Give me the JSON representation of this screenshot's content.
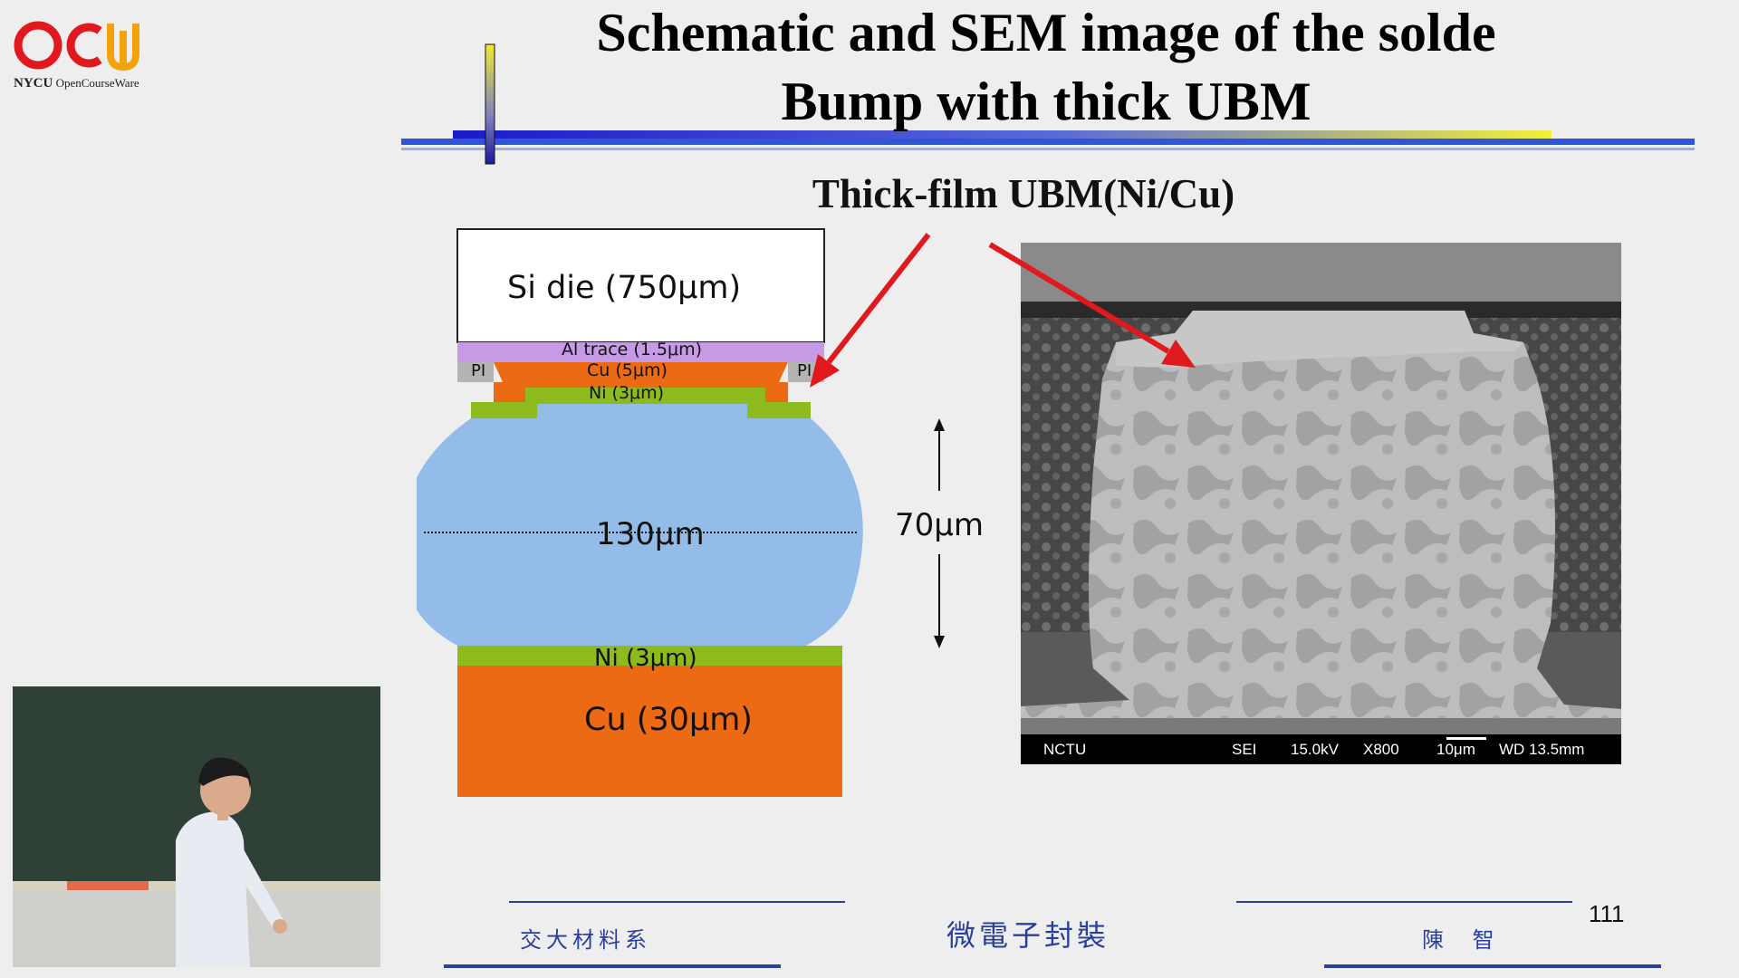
{
  "logo": {
    "brand": "NYCU",
    "sub": "OpenCourseWare"
  },
  "slide": {
    "title_line1": "Schematic and SEM image of the solde",
    "title_line2": "Bump with thick UBM",
    "subtitle": "Thick-film UBM(Ni/Cu)"
  },
  "schematic": {
    "si_die": "Si die (750μm)",
    "al_trace": "Al trace (1.5μm)",
    "pi_left": "PI",
    "pi_right": "PI",
    "cu_top": "Cu (5μm)",
    "ni_top": "Ni (3μm)",
    "width": "130μm",
    "height": "70μm",
    "ni_bottom": "Ni (3μm)",
    "cu_bottom": "Cu (30μm)"
  },
  "sem": {
    "org": "NCTU",
    "mode": "SEI",
    "kv": "15.0kV",
    "mag": "X800",
    "scale": "10μm",
    "wd": "WD 13.5mm"
  },
  "footer": {
    "dept": "交大材料系",
    "course": "微電子封裝",
    "author": "陳 智",
    "page": "111"
  },
  "colors": {
    "footer_blue": "#2a3f9a",
    "arrow_red": "#e0191f",
    "solder_blue": "#93bde8",
    "cu_orange": "#ec6a14",
    "ni_green": "#8dbb1e",
    "al_purple": "#c79ae6"
  }
}
